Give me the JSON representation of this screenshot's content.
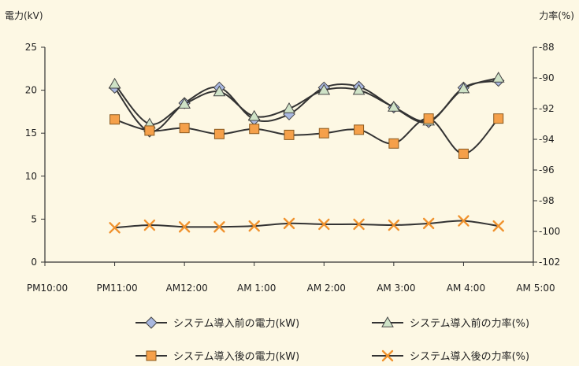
{
  "chart_data": {
    "type": "line",
    "ylabel_left": "電力(kV)",
    "ylabel_right": "力率(%)",
    "x_ticks": [
      "PM10:00",
      "PM11:00",
      "AM12:00",
      "AM 1:00",
      "AM 2:00",
      "AM 3:00",
      "AM 4:00",
      "AM 5:00"
    ],
    "x_range": [
      22.0,
      29.0
    ],
    "y_left_ticks": [
      "0",
      "5",
      "10",
      "15",
      "20",
      "25"
    ],
    "y_left_range": [
      0,
      25
    ],
    "y_right_ticks": [
      "-88",
      "-90",
      "-92",
      "-94",
      "-96",
      "-98",
      "-100",
      "-102"
    ],
    "y_right_range": [
      -102,
      -88
    ],
    "series": [
      {
        "name": "システム導入前の電力(kW)",
        "axis": "left",
        "marker": "diamond",
        "color": "#a9b8e0",
        "line": "#333333",
        "x": [
          23.0,
          23.5,
          24.0,
          24.5,
          25.0,
          25.5,
          26.0,
          26.5,
          27.0,
          27.5,
          28.0,
          28.5
        ],
        "y": [
          20.3,
          15.2,
          18.5,
          20.3,
          16.6,
          17.2,
          20.3,
          20.4,
          18.0,
          16.3,
          20.3,
          21.1
        ]
      },
      {
        "name": "システム導入前の力率(%)",
        "axis": "right",
        "marker": "triangle",
        "color": "#cfe3c7",
        "line": "#333333",
        "x": [
          23.0,
          23.5,
          24.0,
          24.5,
          25.0,
          25.5,
          26.0,
          26.5,
          27.0,
          27.5,
          28.0,
          28.5
        ],
        "y": [
          -90.4,
          -93.0,
          -91.7,
          -90.9,
          -92.5,
          -92.0,
          -90.8,
          -90.8,
          -91.9,
          -92.8,
          -90.7,
          -90.0
        ]
      },
      {
        "name": "システム導入後の電力(kW)",
        "axis": "left",
        "marker": "square",
        "color": "#f5a04a",
        "line": "#333333",
        "x": [
          23.0,
          23.5,
          24.0,
          24.5,
          25.0,
          25.5,
          26.0,
          26.5,
          27.0,
          27.5,
          28.0,
          28.5
        ],
        "y": [
          16.6,
          15.3,
          15.6,
          14.9,
          15.5,
          14.8,
          15.0,
          15.4,
          13.8,
          16.7,
          12.6,
          16.7
        ]
      },
      {
        "name": "システム導入後の力率(%)",
        "axis": "left",
        "marker": "x",
        "color": "#f0922e",
        "line": "#333333",
        "x": [
          23.0,
          23.5,
          24.0,
          24.5,
          25.0,
          25.5,
          26.0,
          26.5,
          27.0,
          27.5,
          28.0,
          28.5
        ],
        "y": [
          4.0,
          4.3,
          4.1,
          4.1,
          4.2,
          4.5,
          4.4,
          4.4,
          4.3,
          4.5,
          4.8,
          4.2
        ]
      }
    ]
  }
}
